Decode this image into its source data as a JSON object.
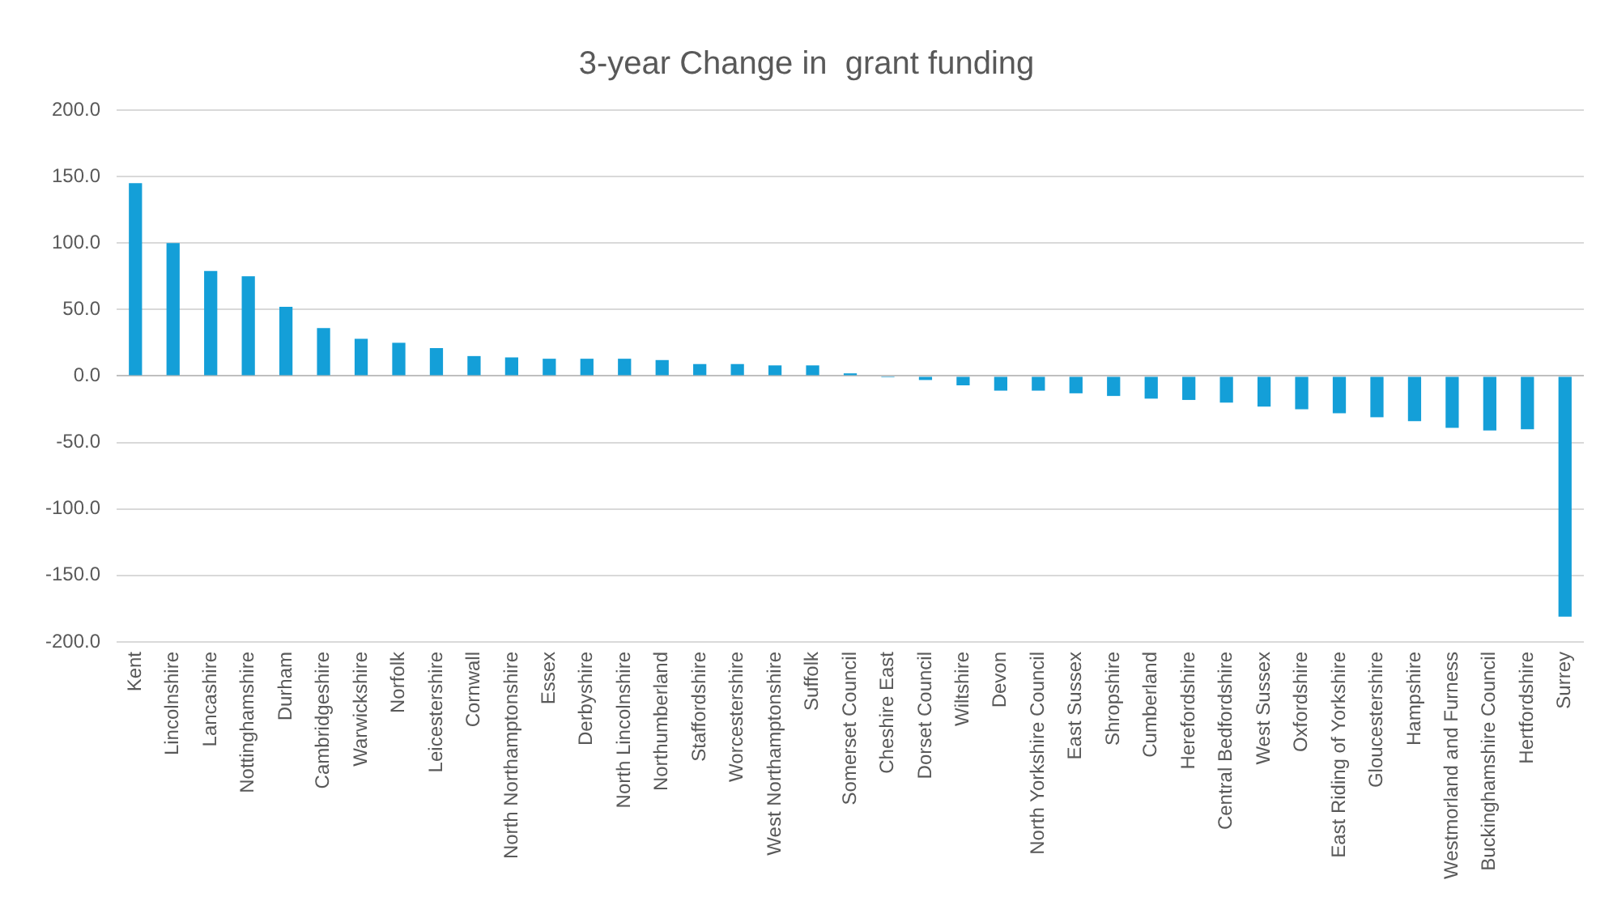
{
  "chart_data": {
    "type": "bar",
    "title": "3-year Change in  grant funding",
    "categories": [
      "Kent",
      "Lincolnshire",
      "Lancashire",
      "Nottinghamshire",
      "Durham",
      "Cambridgeshire",
      "Warwickshire",
      "Norfolk",
      "Leicestershire",
      "Cornwall",
      "North Northamptonshire",
      "Essex",
      "Derbyshire",
      "North Lincolnshire",
      "Northumberland",
      "Staffordshire",
      "Worcestershire",
      "West Northamptonshire",
      "Suffolk",
      "Somerset Council",
      "Cheshire East",
      "Dorset Council",
      "Wiltshire",
      "Devon",
      "North Yorkshire Council",
      "East Sussex",
      "Shropshire",
      "Cumberland",
      "Herefordshire",
      "Central Bedfordshire",
      "West Sussex",
      "Oxfordshire",
      "East Riding of Yorkshire",
      "Gloucestershire",
      "Hampshire",
      "Westmorland and Furness",
      "Buckinghamshire Council",
      "Hertfordshire",
      "Surrey"
    ],
    "values": [
      145,
      100,
      79,
      75,
      52,
      36,
      28,
      25,
      21,
      15,
      14,
      13,
      13,
      13,
      12,
      9,
      9,
      8,
      8,
      2,
      -1,
      -3,
      -7,
      -11,
      -11,
      -13,
      -15,
      -17,
      -18,
      -20,
      -23,
      -25,
      -28,
      -31,
      -34,
      -39,
      -41,
      -40,
      -181
    ],
    "color": "#149fd8",
    "ylim": [
      -200,
      200
    ],
    "yticks": [
      {
        "value": -200,
        "label": "-200.0"
      },
      {
        "value": -150,
        "label": "-150.0"
      },
      {
        "value": -100,
        "label": "-100.0"
      },
      {
        "value": -50,
        "label": "-50.0"
      },
      {
        "value": 0,
        "label": "0.0"
      },
      {
        "value": 50,
        "label": "50.0"
      },
      {
        "value": 100,
        "label": "100.0"
      },
      {
        "value": 150,
        "label": "150.0"
      },
      {
        "value": 200,
        "label": "200.0"
      }
    ],
    "grid": "y",
    "legend": false
  }
}
